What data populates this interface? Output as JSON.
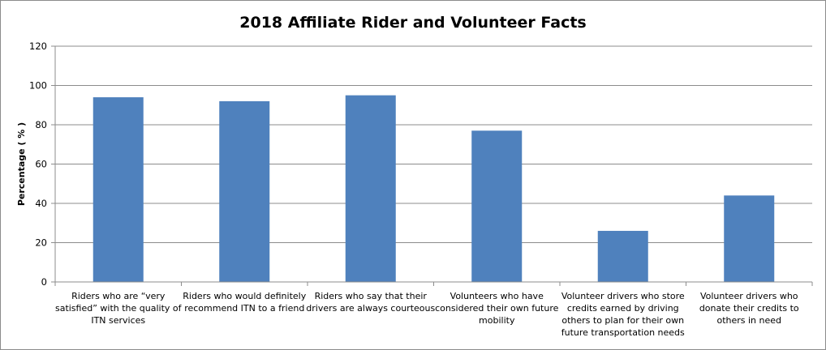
{
  "chart_data": {
    "type": "bar",
    "title": "2018 Affiliate Rider and Volunteer Facts",
    "ylabel": "Percentage ( % )",
    "xlabel": "",
    "ylim": [
      0,
      120
    ],
    "yticks": [
      0,
      20,
      40,
      60,
      80,
      100,
      120
    ],
    "grid": true,
    "legend": "none",
    "bar_color": "#4f81bd",
    "categories": [
      "Riders who are “very satisfied” with the quality of ITN services",
      "Riders who would definitely recommend ITN to a friend",
      "Riders who say that their drivers are always courteous",
      "Volunteers who have considered their own future mobility",
      "Volunteer drivers who store credits earned by driving others to plan for their own future transportation needs",
      "Volunteer drivers who donate their credits to others in need"
    ],
    "category_lines": [
      [
        "Riders who are “very",
        "satisfied” with the quality of",
        "ITN services"
      ],
      [
        "Riders who would definitely",
        "recommend ITN to a friend"
      ],
      [
        "Riders who say that their",
        "drivers are always courteous"
      ],
      [
        "Volunteers who have",
        "considered their own future",
        "mobility"
      ],
      [
        "Volunteer drivers who store",
        "credits earned by driving",
        "others to plan for their own",
        "future transportation needs"
      ],
      [
        "Volunteer drivers who",
        "donate their credits to",
        "others in need"
      ]
    ],
    "values": [
      94,
      92,
      95,
      77,
      26,
      44
    ]
  }
}
